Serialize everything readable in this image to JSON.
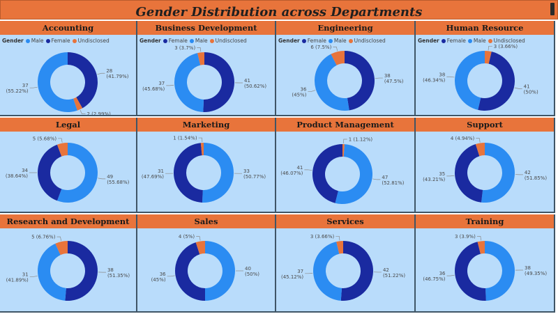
{
  "title": "Gender Distribution across Departments",
  "colors": {
    "Male": "#2b8cf2",
    "Female": "#1a2aa0",
    "Undisclosed": "#e8743b"
  },
  "chart_data": [
    {
      "type": "pie",
      "title": "Accounting",
      "legend_title": "Gender",
      "legend": [
        "Male",
        "Female",
        "Undisclosed"
      ],
      "slices": [
        {
          "label": "Female",
          "value": 28,
          "pct": "41.79%"
        },
        {
          "label": "Undisclosed",
          "value": 2,
          "pct": "2.99%"
        },
        {
          "label": "Male",
          "value": 37,
          "pct": "55.22%"
        }
      ]
    },
    {
      "type": "pie",
      "title": "Business Development",
      "legend_title": "Gender",
      "legend": [
        "Female",
        "Male",
        "Undisclosed"
      ],
      "slices": [
        {
          "label": "Female",
          "value": 41,
          "pct": "50.62%"
        },
        {
          "label": "Male",
          "value": 37,
          "pct": "45.68%"
        },
        {
          "label": "Undisclosed",
          "value": 3,
          "pct": "3.7%"
        }
      ]
    },
    {
      "type": "pie",
      "title": "Engineering",
      "legend_title": "Gender",
      "legend": [
        "Female",
        "Male",
        "Undisclosed"
      ],
      "slices": [
        {
          "label": "Female",
          "value": 38,
          "pct": "47.5%"
        },
        {
          "label": "Male",
          "value": 36,
          "pct": "45%"
        },
        {
          "label": "Undisclosed",
          "value": 6,
          "pct": "7.5%"
        }
      ]
    },
    {
      "type": "pie",
      "title": "Human Resource",
      "legend_title": "Gender",
      "legend": [
        "Female",
        "Male",
        "Undisclosed"
      ],
      "slices": [
        {
          "label": "Undisclosed",
          "value": 3,
          "pct": "3.66%"
        },
        {
          "label": "Female",
          "value": 41,
          "pct": "50%"
        },
        {
          "label": "Male",
          "value": 38,
          "pct": "46.34%"
        }
      ]
    },
    {
      "type": "pie",
      "title": "Legal",
      "slices": [
        {
          "label": "Male",
          "value": 49,
          "pct": "55.68%"
        },
        {
          "label": "Female",
          "value": 34,
          "pct": "38.64%"
        },
        {
          "label": "Undisclosed",
          "value": 5,
          "pct": "5.68%"
        }
      ]
    },
    {
      "type": "pie",
      "title": "Marketing",
      "slices": [
        {
          "label": "Male",
          "value": 33,
          "pct": "50.77%"
        },
        {
          "label": "Female",
          "value": 31,
          "pct": "47.69%"
        },
        {
          "label": "Undisclosed",
          "value": 1,
          "pct": "1.54%"
        }
      ]
    },
    {
      "type": "pie",
      "title": "Product Management",
      "slices": [
        {
          "label": "Undisclosed",
          "value": 1,
          "pct": "1.12%"
        },
        {
          "label": "Male",
          "value": 47,
          "pct": "52.81%"
        },
        {
          "label": "Female",
          "value": 41,
          "pct": "46.07%"
        }
      ]
    },
    {
      "type": "pie",
      "title": "Support",
      "slices": [
        {
          "label": "Male",
          "value": 42,
          "pct": "51.85%"
        },
        {
          "label": "Female",
          "value": 35,
          "pct": "43.21%"
        },
        {
          "label": "Undisclosed",
          "value": 4,
          "pct": "4.94%"
        }
      ]
    },
    {
      "type": "pie",
      "title": "Research and Development",
      "slices": [
        {
          "label": "Female",
          "value": 38,
          "pct": "51.35%"
        },
        {
          "label": "Male",
          "value": 31,
          "pct": "41.89%"
        },
        {
          "label": "Undisclosed",
          "value": 5,
          "pct": "6.76%"
        }
      ]
    },
    {
      "type": "pie",
      "title": "Sales",
      "slices": [
        {
          "label": "Male",
          "value": 40,
          "pct": "50%"
        },
        {
          "label": "Female",
          "value": 36,
          "pct": "45%"
        },
        {
          "label": "Undisclosed",
          "value": 4,
          "pct": "5%"
        }
      ]
    },
    {
      "type": "pie",
      "title": "Services",
      "slices": [
        {
          "label": "Female",
          "value": 42,
          "pct": "51.22%"
        },
        {
          "label": "Male",
          "value": 37,
          "pct": "45.12%"
        },
        {
          "label": "Undisclosed",
          "value": 3,
          "pct": "3.66%"
        }
      ]
    },
    {
      "type": "pie",
      "title": "Training",
      "slices": [
        {
          "label": "Male",
          "value": 38,
          "pct": "49.35%"
        },
        {
          "label": "Female",
          "value": 36,
          "pct": "46.75%"
        },
        {
          "label": "Undisclosed",
          "value": 3,
          "pct": "3.9%"
        }
      ]
    }
  ]
}
